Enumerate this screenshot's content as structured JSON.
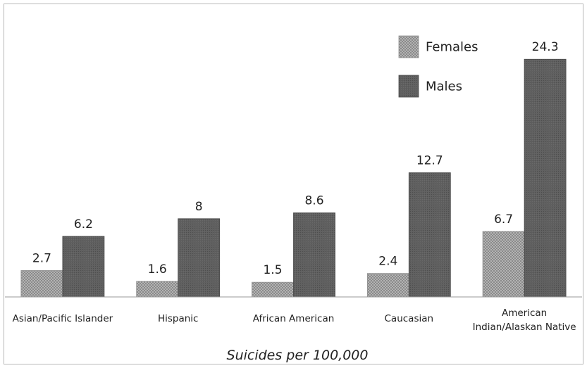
{
  "chart_data": {
    "type": "bar",
    "categories": [
      [
        "Asian/Pacific Islander"
      ],
      [
        "Hispanic"
      ],
      [
        "African American"
      ],
      [
        "Caucasian"
      ],
      [
        "American",
        "Indian/Alaskan Native"
      ]
    ],
    "series": [
      {
        "name": "Females",
        "values": [
          2.7,
          1.6,
          1.5,
          2.4,
          6.7
        ],
        "color": "#9a9a9a",
        "pattern": "dotted"
      },
      {
        "name": "Males",
        "values": [
          6.2,
          8,
          8.6,
          12.7,
          24.3
        ],
        "color": "#5c5c5c",
        "pattern": "solid"
      }
    ],
    "value_labels": [
      [
        "2.7",
        "1.6",
        "1.5",
        "2.4",
        "6.7"
      ],
      [
        "6.2",
        "8",
        "8.6",
        "12.7",
        "24.3"
      ]
    ],
    "xlabel": "Suicides per 100,000",
    "ylim": [
      0,
      27
    ],
    "grid": false,
    "y_axis_visible": false,
    "legend_position": "top-right"
  }
}
